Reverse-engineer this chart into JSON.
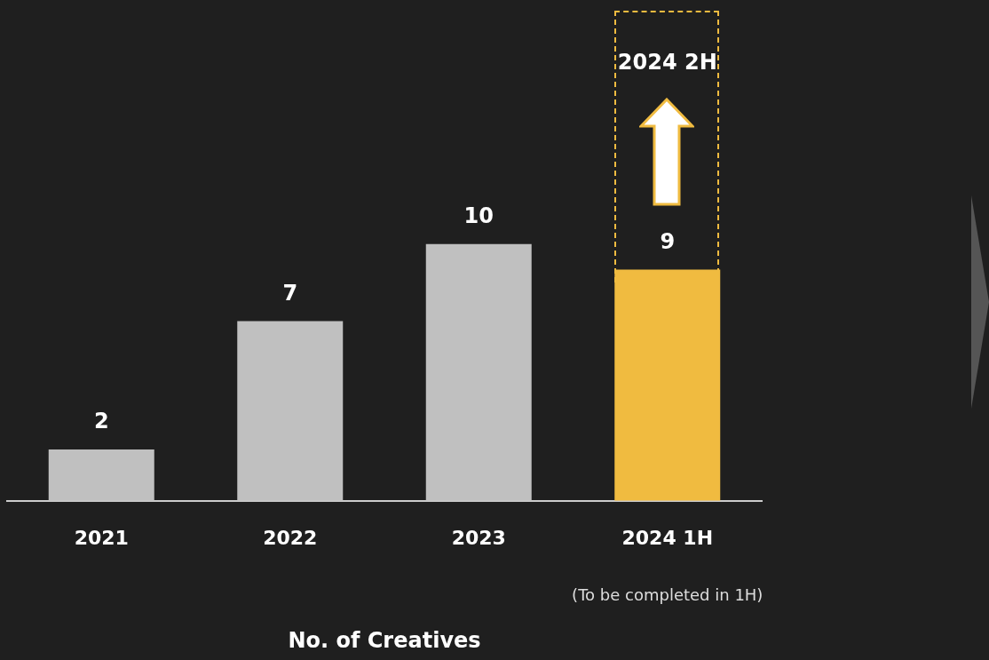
{
  "chart_data": {
    "type": "bar",
    "categories": [
      "2021",
      "2022",
      "2023",
      "2024 1H"
    ],
    "values": [
      2,
      7,
      10,
      9
    ],
    "colors": [
      "#c0c0c0",
      "#c0c0c0",
      "#c0c0c0",
      "#f0bb40"
    ],
    "xlabel": "No. of Creatives",
    "annotations": [
      "2024 2H",
      "(To be completed in 1H)"
    ],
    "data_labels": true
  }
}
